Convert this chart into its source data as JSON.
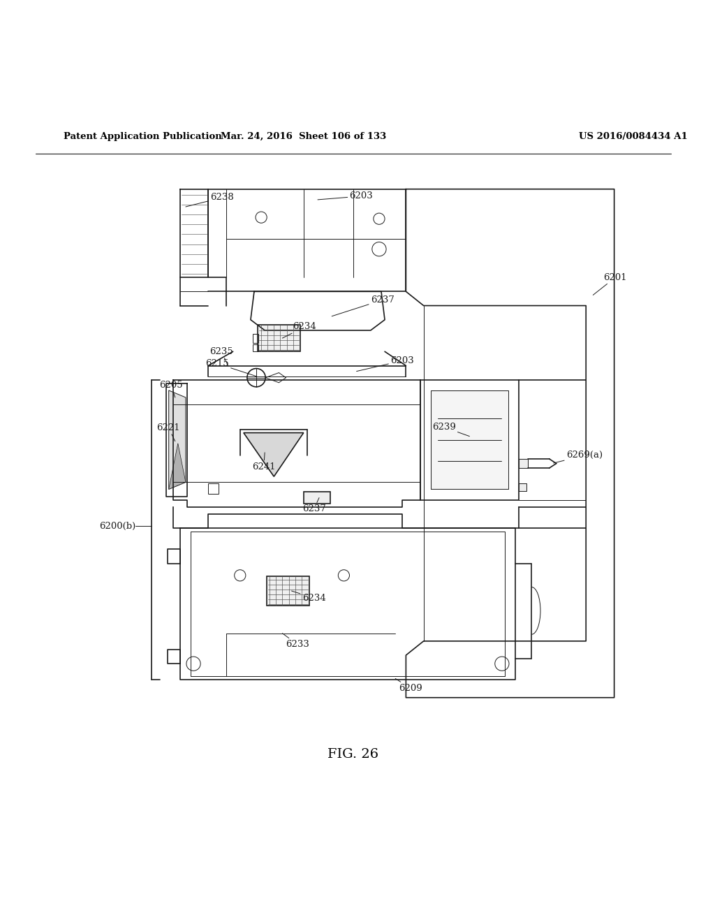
{
  "bg_color": "#ffffff",
  "header_left": "Patent Application Publication",
  "header_mid": "Mar. 24, 2016  Sheet 106 of 133",
  "header_right": "US 2016/0084434 A1",
  "figure_label": "FIG. 26",
  "label_fontsize": 9.5,
  "header_fontsize": 9.5,
  "fig_label_fontsize": 14,
  "line_color": "#1a1a1a"
}
